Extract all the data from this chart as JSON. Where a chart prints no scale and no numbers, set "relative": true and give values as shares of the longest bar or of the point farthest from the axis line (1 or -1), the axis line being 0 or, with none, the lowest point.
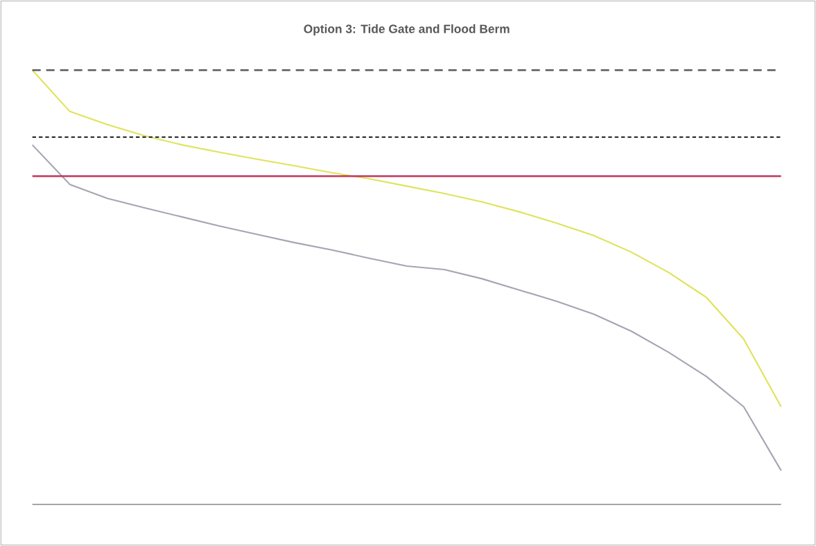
{
  "chart_data": {
    "type": "line",
    "title": "Option 3: Tide Gate and Flood Berm",
    "relative": true,
    "marker": "none",
    "categories": [
      null,
      null,
      null,
      null,
      null,
      null,
      null,
      null,
      null,
      null,
      null,
      null,
      null,
      null,
      null,
      null,
      null,
      null,
      null,
      null,
      null
    ],
    "series": [
      {
        "color": "#dfe35a",
        "values": [
          1.0,
          0.905,
          0.875,
          0.849,
          0.828,
          0.811,
          0.795,
          0.78,
          0.764,
          0.75,
          0.733,
          0.716,
          0.697,
          0.674,
          0.648,
          0.619,
          0.581,
          0.534,
          0.477,
          0.381,
          0.225
        ]
      },
      {
        "color": "#a3a6b2",
        "values": [
          0.828,
          0.737,
          0.705,
          0.683,
          0.662,
          0.641,
          0.622,
          0.603,
          0.586,
          0.567,
          0.549,
          0.541,
          0.52,
          0.494,
          0.468,
          0.438,
          0.399,
          0.35,
          0.295,
          0.225,
          0.078
        ]
      }
    ],
    "ref_lines": [
      {
        "axis": "y",
        "value": 1.0,
        "color": "#5a5a5a",
        "line_style": "dashed"
      },
      {
        "axis": "y",
        "value": 0.846,
        "color": "#333333",
        "line_style": "dotted"
      },
      {
        "axis": "y",
        "value": 0.756,
        "color": "#c0385a",
        "line_style": "solid"
      }
    ]
  }
}
